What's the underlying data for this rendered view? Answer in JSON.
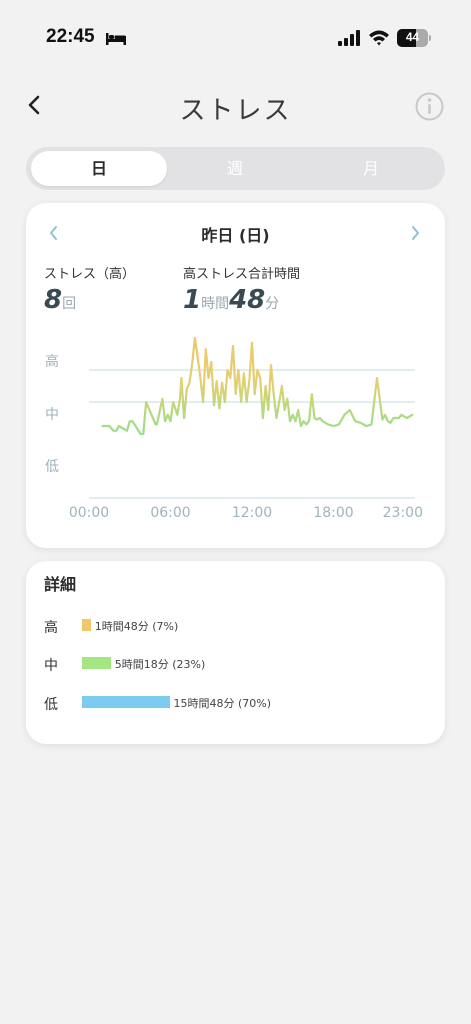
{
  "status_bar": {
    "time": "22:45",
    "battery": "44"
  },
  "header": {
    "title": "ストレス"
  },
  "tabs": [
    {
      "label": "日",
      "active": true
    },
    {
      "label": "週",
      "active": false
    },
    {
      "label": "月",
      "active": false
    }
  ],
  "summary": {
    "date": "昨日 (日)",
    "high_count_label": "ストレス（高）",
    "high_count_value": "8",
    "high_count_unit": "回",
    "high_time_label": "高ストレス合計時間",
    "high_time_hours": "1",
    "high_time_hours_unit": "時間",
    "high_time_minutes": "48",
    "high_time_minutes_unit": "分"
  },
  "chart_data": {
    "type": "line",
    "y_levels": [
      "高",
      "中",
      "低"
    ],
    "x_ticks": [
      "00:00",
      "06:00",
      "12:00",
      "18:00",
      "23:00"
    ],
    "xlim": [
      0,
      24
    ],
    "ylim": [
      0,
      100
    ],
    "level_thresholds": [
      60,
      80
    ],
    "series": [
      {
        "x": [
          1.0,
          1.5,
          1.8,
          2.0,
          2.2,
          2.8,
          3.0,
          3.2,
          3.8,
          4.0,
          4.2,
          4.9,
          5.0,
          5.4,
          5.6,
          5.8,
          6.0,
          6.2,
          6.5,
          6.7,
          6.8,
          7.0,
          7.2,
          7.4,
          7.6,
          7.8,
          8.0,
          8.2,
          8.4,
          8.6,
          8.8,
          9.0,
          9.2,
          9.4,
          9.6,
          9.8,
          10.0,
          10.2,
          10.4,
          10.6,
          10.8,
          11.0,
          11.2,
          11.4,
          11.6,
          11.8,
          12.0,
          12.2,
          12.4,
          12.6,
          12.8,
          13.0,
          13.2,
          13.4,
          13.6,
          13.8,
          14.0,
          14.2,
          14.4,
          14.6,
          14.8,
          15.0,
          15.2,
          15.4,
          15.6,
          15.8,
          16.0,
          16.2,
          16.4,
          16.6,
          16.8,
          17.0,
          17.2,
          17.4,
          17.6,
          18.0,
          18.4,
          18.8,
          19.2,
          19.6,
          20.0,
          20.4,
          20.8,
          21.2,
          21.6,
          21.8,
          22.0,
          22.2,
          22.4,
          22.8,
          23.0,
          23.4,
          23.8
        ],
        "values": [
          45,
          45,
          42,
          42,
          45,
          42,
          48,
          48,
          40,
          40,
          60,
          46,
          46,
          62,
          48,
          52,
          48,
          60,
          52,
          62,
          75,
          50,
          68,
          72,
          84,
          100,
          88,
          75,
          60,
          93,
          75,
          85,
          58,
          73,
          56,
          72,
          60,
          80,
          75,
          95,
          65,
          80,
          60,
          78,
          60,
          73,
          97,
          65,
          80,
          75,
          50,
          70,
          55,
          83,
          65,
          50,
          60,
          70,
          55,
          62,
          48,
          52,
          48,
          55,
          45,
          48,
          46,
          48,
          65,
          50,
          49,
          50,
          48,
          47,
          46,
          45,
          46,
          52,
          55,
          48,
          47,
          45,
          46,
          75,
          49,
          52,
          48,
          47,
          50,
          50,
          52,
          50,
          52
        ]
      }
    ]
  },
  "details": {
    "title": "詳細",
    "rows": [
      {
        "label": "高",
        "text": "1時間48分 (7%)",
        "percent": 7,
        "color": "#f0c76a"
      },
      {
        "label": "中",
        "text": "5時間18分 (23%)",
        "percent": 23,
        "color": "#a4e584"
      },
      {
        "label": "低",
        "text": "15時間48分 (70%)",
        "percent": 70,
        "color": "#7ccbf0"
      }
    ]
  }
}
